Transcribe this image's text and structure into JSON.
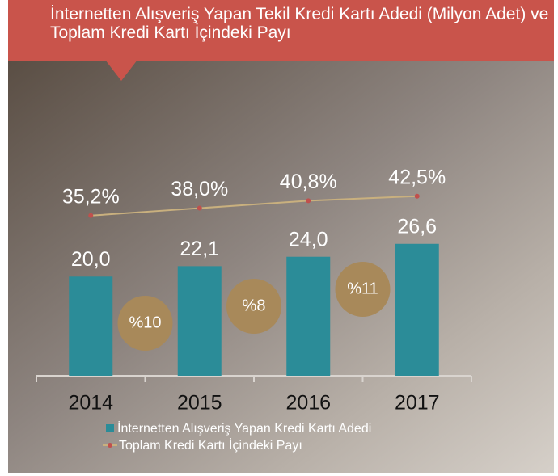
{
  "chart_data": {
    "type": "bar-line",
    "title": "İnternetten Alışveriş Yapan Tekil Kredi Kartı Adedi (Milyon Adet) ve Toplam Kredi Kartı İçindeki Payı",
    "categories": [
      "2014",
      "2015",
      "2016",
      "2017"
    ],
    "series": [
      {
        "name": "İnternetten Alışveriş Yapan Kredi Kartı Adedi",
        "color": "#2b8c98",
        "values": [
          20.0,
          22.1,
          24.0,
          26.6
        ],
        "value_labels": [
          "20,0",
          "22,1",
          "24,0",
          "26,6"
        ]
      },
      {
        "name": "Toplam Kredi Kartı İçindeki Payı",
        "color": "#c9b07e",
        "marker_color": "#c0504d",
        "axis": "y2",
        "values": [
          35.2,
          38.0,
          40.8,
          42.5
        ],
        "value_labels": [
          "35,2%",
          "38,0%",
          "40,8%",
          "42,5%"
        ]
      }
    ],
    "growth": [
      {
        "value": 10,
        "label": "%10"
      },
      {
        "value": 8,
        "label": "%8"
      },
      {
        "value": 11,
        "label": "%11"
      }
    ],
    "growth_color": "#a8895a",
    "ylim": [
      0,
      66
    ],
    "y2lim": [
      -25,
      98
    ]
  }
}
